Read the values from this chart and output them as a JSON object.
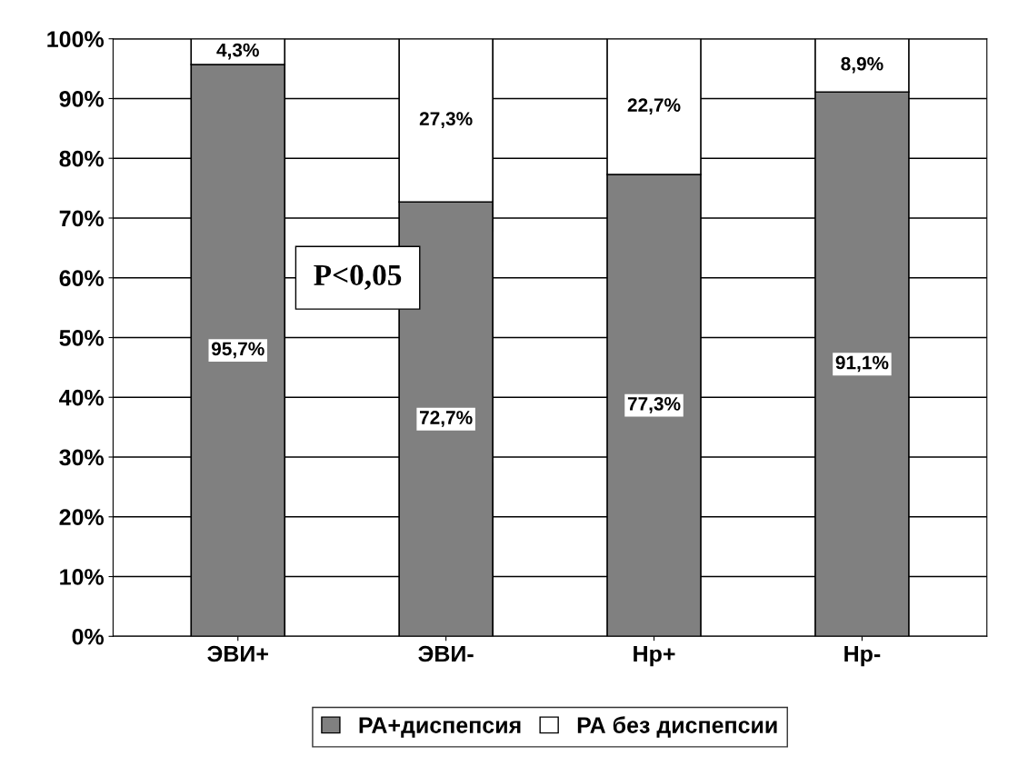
{
  "chart_data": {
    "type": "bar",
    "stacked": true,
    "categories": [
      "ЭВИ+",
      "ЭВИ-",
      "Hp+",
      "Hp-"
    ],
    "series": [
      {
        "name": "РА+диспепсия",
        "color": "#808080",
        "values": [
          95.7,
          72.7,
          77.3,
          91.1
        ],
        "value_labels": [
          "95,7%",
          "72,7%",
          "77,3%",
          "91,1%"
        ]
      },
      {
        "name": "РА без диспепсии",
        "color": "#ffffff",
        "values": [
          4.3,
          27.3,
          22.7,
          8.9
        ],
        "value_labels": [
          "4,3%",
          "27,3%",
          "22,7%",
          "8,9%"
        ]
      }
    ],
    "ylim": [
      0,
      100
    ],
    "yticks": [
      {
        "value": 0,
        "label": "0%"
      },
      {
        "value": 10,
        "label": "10%"
      },
      {
        "value": 20,
        "label": "20%"
      },
      {
        "value": 30,
        "label": "30%"
      },
      {
        "value": 40,
        "label": "40%"
      },
      {
        "value": 50,
        "label": "50%"
      },
      {
        "value": 60,
        "label": "60%"
      },
      {
        "value": 70,
        "label": "70%"
      },
      {
        "value": 80,
        "label": "80%"
      },
      {
        "value": 90,
        "label": "90%"
      },
      {
        "value": 100,
        "label": "100%"
      }
    ],
    "grid": "y",
    "legend": "bottom",
    "annotations": [
      "P<0,05"
    ]
  }
}
